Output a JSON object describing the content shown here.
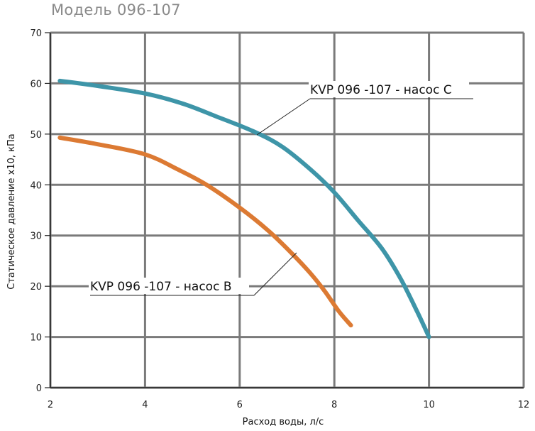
{
  "chart_data": {
    "type": "line",
    "title": "Модель 096-107",
    "xlabel": "Расход воды, л/с",
    "ylabel": "Статическое давление х10, кПа",
    "xlim": [
      2,
      12
    ],
    "ylim": [
      0,
      70
    ],
    "x_ticks": [
      "2",
      "4",
      "6",
      "8",
      "10",
      "12"
    ],
    "y_ticks": [
      "0",
      "10",
      "20",
      "30",
      "40",
      "50",
      "60",
      "70"
    ],
    "grid": true,
    "series": [
      {
        "name": "KVP 096 -107  - насос С",
        "color": "#3e95a8",
        "points": [
          [
            2.2,
            60.5
          ],
          [
            3.0,
            59.5
          ],
          [
            4.0,
            58.0
          ],
          [
            4.8,
            56.0
          ],
          [
            5.5,
            53.5
          ],
          [
            6.3,
            50.5
          ],
          [
            6.9,
            47.5
          ],
          [
            7.5,
            43.0
          ],
          [
            8.0,
            38.5
          ],
          [
            8.5,
            33.0
          ],
          [
            9.0,
            27.5
          ],
          [
            9.4,
            21.5
          ],
          [
            9.75,
            15.0
          ],
          [
            10.0,
            10.0
          ]
        ]
      },
      {
        "name": "KVP 096 -107  -  насос В",
        "color": "#dc7a33",
        "points": [
          [
            2.2,
            49.3
          ],
          [
            3.0,
            48.0
          ],
          [
            4.0,
            46.0
          ],
          [
            4.7,
            43.0
          ],
          [
            5.3,
            40.0
          ],
          [
            6.0,
            35.5
          ],
          [
            6.6,
            31.0
          ],
          [
            7.1,
            26.5
          ],
          [
            7.5,
            22.5
          ],
          [
            7.8,
            19.0
          ],
          [
            8.1,
            15.0
          ],
          [
            8.35,
            12.3
          ]
        ]
      }
    ],
    "annotations": [
      {
        "text": "KVP 096 -107  - насос С",
        "series": 0
      },
      {
        "text": "KVP 096 -107  -  насос В",
        "series": 1
      }
    ]
  }
}
